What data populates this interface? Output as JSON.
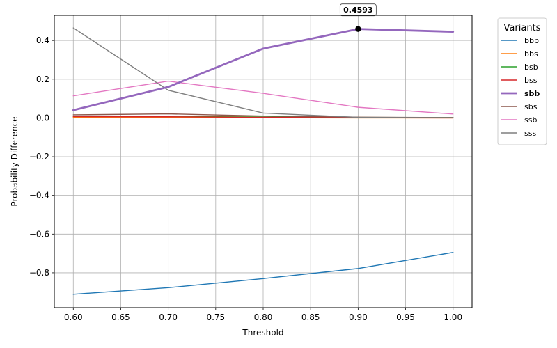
{
  "chart_data": {
    "type": "line",
    "xlabel": "Threshold",
    "ylabel": "Probability Difference",
    "xlim": [
      0.58,
      1.02
    ],
    "ylim": [
      -0.98,
      0.53
    ],
    "xticks": [
      0.6,
      0.65,
      0.7,
      0.75,
      0.8,
      0.85,
      0.9,
      0.95,
      1.0
    ],
    "xtick_labels": [
      "0.60",
      "0.65",
      "0.70",
      "0.75",
      "0.80",
      "0.85",
      "0.90",
      "0.95",
      "1.00"
    ],
    "yticks": [
      -0.8,
      -0.6,
      -0.4,
      -0.2,
      0.0,
      0.2,
      0.4
    ],
    "ytick_labels": [
      "−0.8",
      "−0.6",
      "−0.4",
      "−0.2",
      "0.0",
      "0.2",
      "0.4"
    ],
    "grid": true,
    "legend": {
      "title": "Variants",
      "placement": "outside-right"
    },
    "x": [
      0.6,
      0.7,
      0.8,
      0.9,
      1.0
    ],
    "series": [
      {
        "name": "bbb",
        "color": "#1f77b4",
        "highlight": false,
        "values": [
          -0.911,
          -0.877,
          -0.83,
          -0.778,
          -0.695
        ]
      },
      {
        "name": "bbs",
        "color": "#ff7f0e",
        "highlight": false,
        "values": [
          0.003,
          0.003,
          0.001,
          0.0,
          0.0
        ]
      },
      {
        "name": "bsb",
        "color": "#2ca02c",
        "highlight": false,
        "values": [
          0.01,
          0.01,
          0.008,
          0.003,
          0.002
        ]
      },
      {
        "name": "bss",
        "color": "#d62728",
        "highlight": false,
        "values": [
          0.007,
          0.006,
          0.003,
          0.001,
          0.0
        ]
      },
      {
        "name": "sbb",
        "color": "#9467bd",
        "highlight": true,
        "values": [
          0.04,
          0.16,
          0.358,
          0.4593,
          0.445
        ]
      },
      {
        "name": "sbs",
        "color": "#8c564b",
        "highlight": false,
        "values": [
          0.016,
          0.021,
          0.01,
          0.004,
          0.002
        ]
      },
      {
        "name": "ssb",
        "color": "#e377c2",
        "highlight": false,
        "values": [
          0.114,
          0.19,
          0.127,
          0.055,
          0.02
        ]
      },
      {
        "name": "sss",
        "color": "#7f7f7f",
        "highlight": false,
        "values": [
          0.465,
          0.143,
          0.025,
          0.003,
          0.001
        ]
      }
    ],
    "annotation": {
      "series": "sbb",
      "x": 0.9,
      "y": 0.4593,
      "label": "0.4593"
    }
  }
}
